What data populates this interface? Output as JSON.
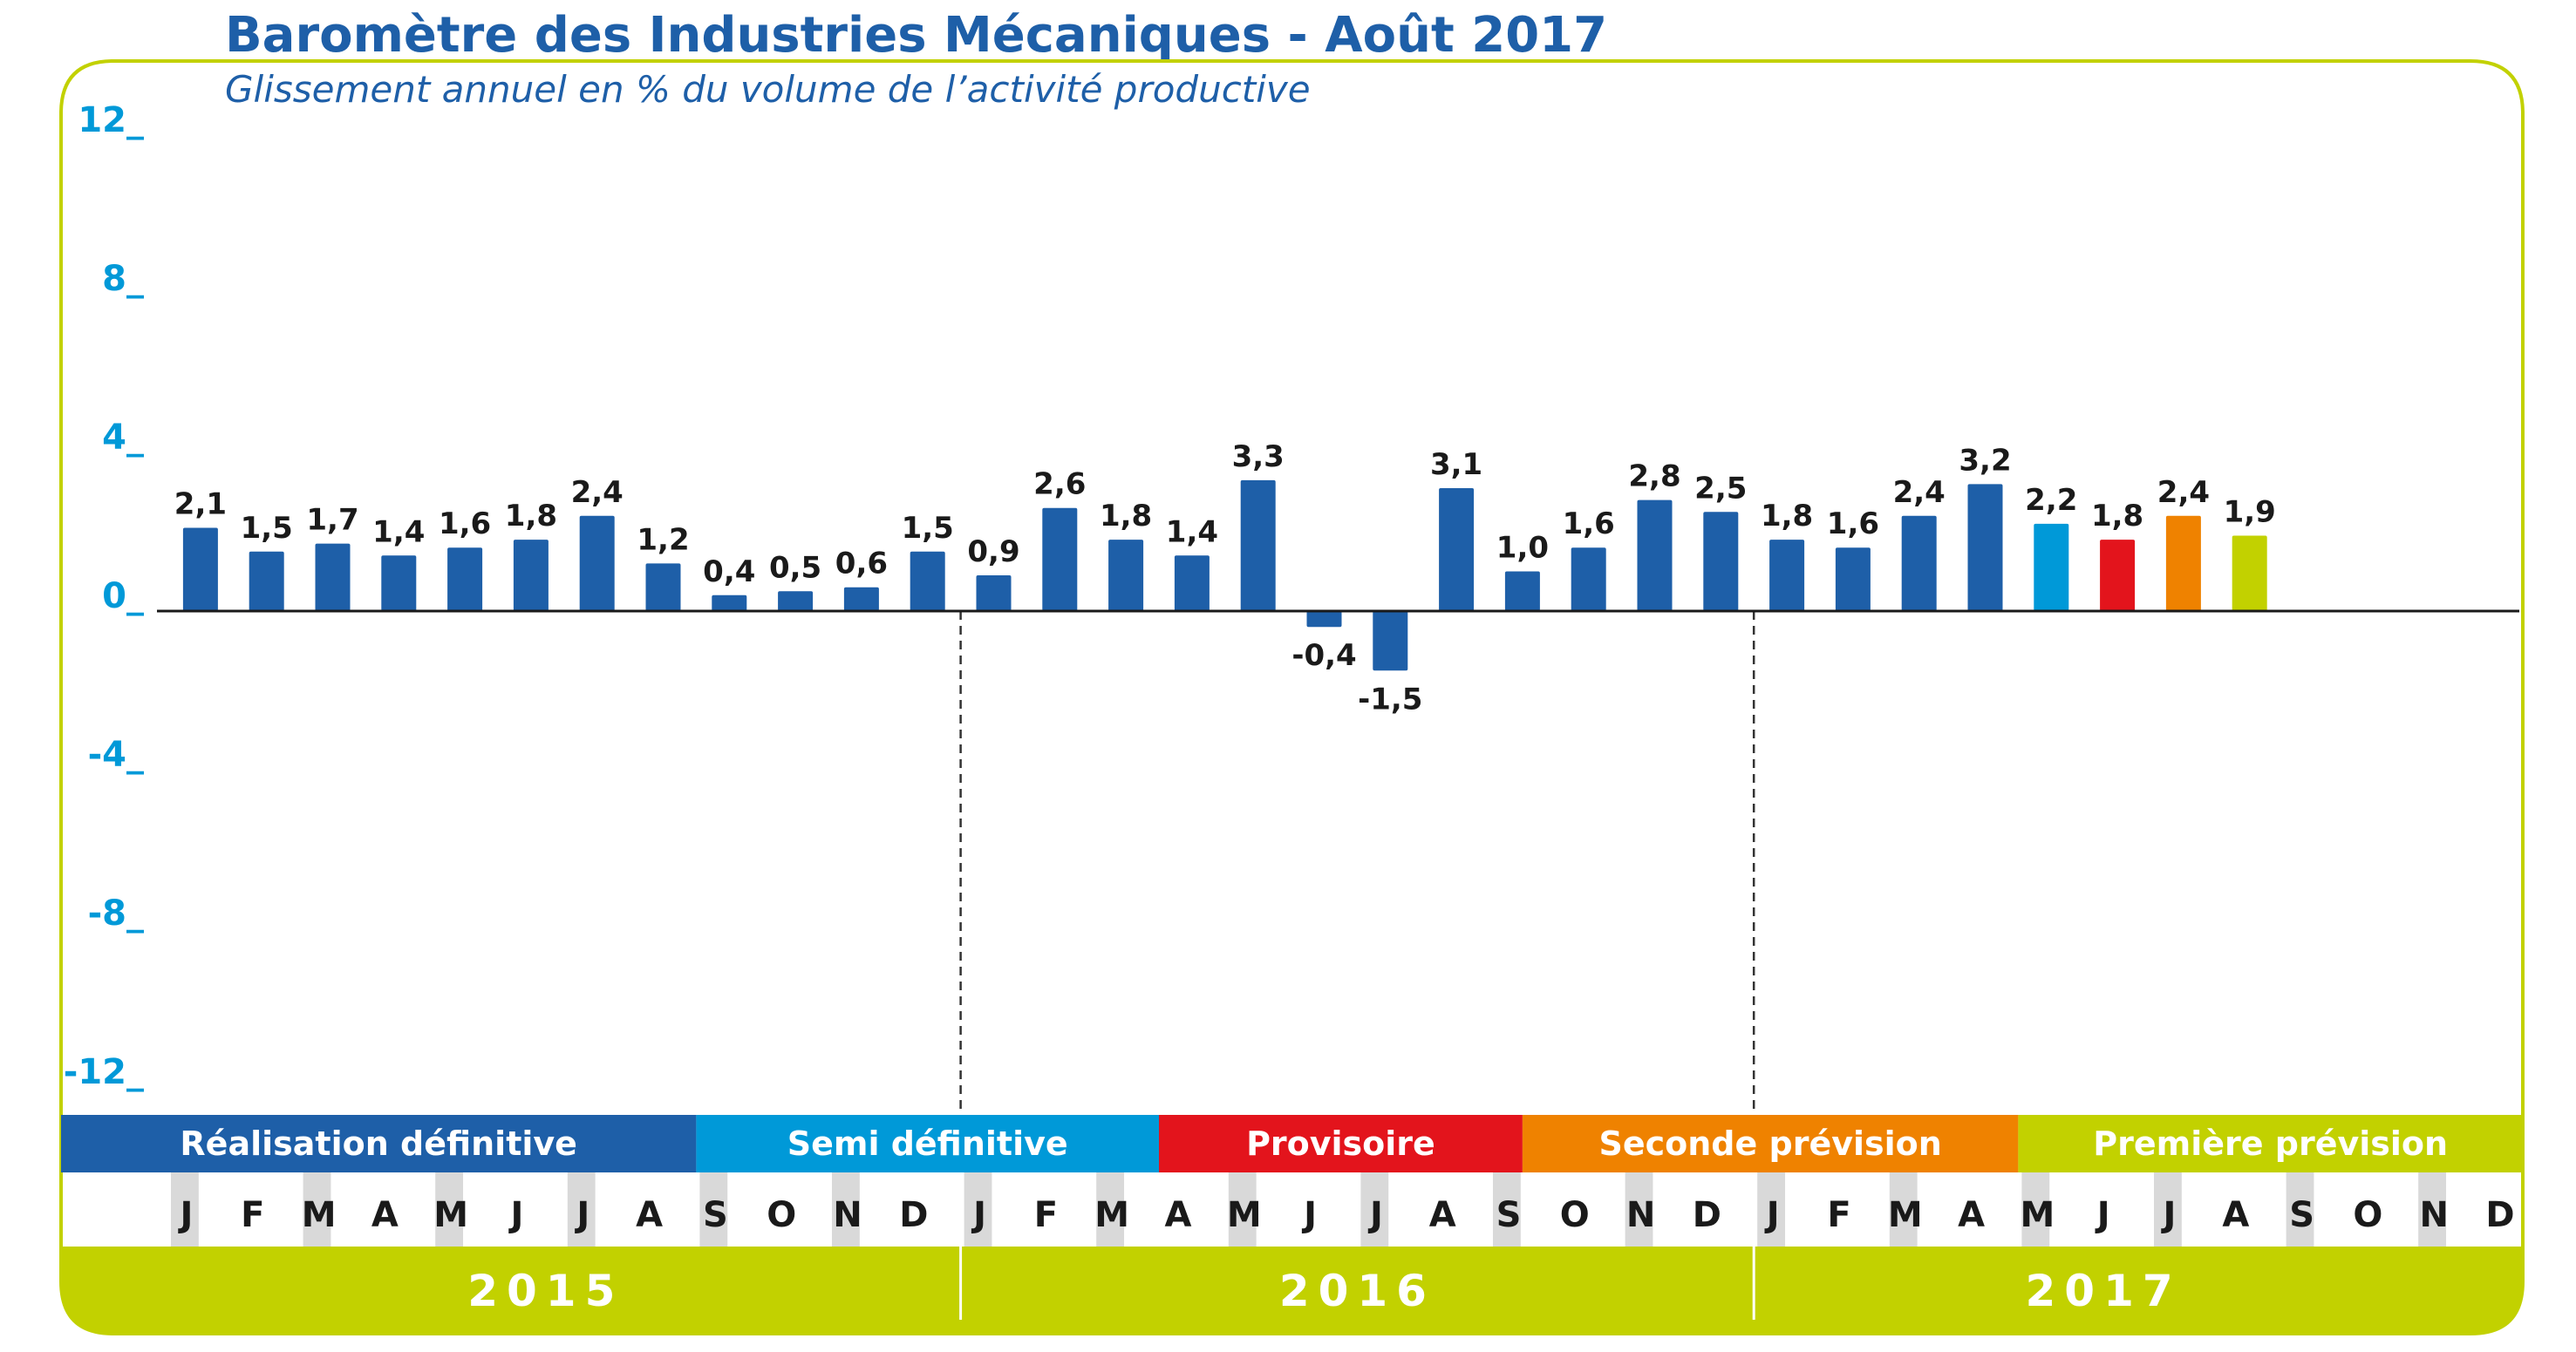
{
  "chart_data": {
    "type": "bar",
    "title": "Baromètre des Industries Mécaniques - Août 2017",
    "subtitle": "Glissement annuel en % du volume de l’activité productive",
    "ylim": [
      -12,
      12
    ],
    "yticks": [
      "12_",
      "8_",
      "4_",
      "0_",
      "-4_",
      "-8_",
      "-12_"
    ],
    "ytick_values": [
      12,
      8,
      4,
      0,
      -4,
      -8,
      -12
    ],
    "grid": false,
    "month_labels": [
      "J",
      "F",
      "M",
      "A",
      "M",
      "J",
      "J",
      "A",
      "S",
      "O",
      "N",
      "D",
      "J",
      "F",
      "M",
      "A",
      "M",
      "J",
      "J",
      "A",
      "S",
      "O",
      "N",
      "D",
      "J",
      "F",
      "M",
      "A",
      "M",
      "J",
      "J",
      "A",
      "S",
      "O",
      "N",
      "D"
    ],
    "years": [
      "2015",
      "2016",
      "2017"
    ],
    "values": [
      2.1,
      1.5,
      1.7,
      1.4,
      1.6,
      1.8,
      2.4,
      1.2,
      0.4,
      0.5,
      0.6,
      1.5,
      0.9,
      2.6,
      1.8,
      1.4,
      3.3,
      -0.4,
      -1.5,
      3.1,
      1.0,
      1.6,
      2.8,
      2.5,
      1.8,
      1.6,
      2.4,
      3.2,
      2.2,
      1.8,
      2.4,
      1.9
    ],
    "value_labels": [
      "2,1",
      "1,5",
      "1,7",
      "1,4",
      "1,6",
      "1,8",
      "2,4",
      "1,2",
      "0,4",
      "0,5",
      "0,6",
      "1,5",
      "0,9",
      "2,6",
      "1,8",
      "1,4",
      "3,3",
      "-0,4",
      "-1,5",
      "3,1",
      "1,0",
      "1,6",
      "2,8",
      "2,5",
      "1,8",
      "1,6",
      "2,4",
      "3,2",
      "2,2",
      "1,8",
      "2,4",
      "1,9"
    ],
    "bar_colors": [
      "#1e5fa8",
      "#1e5fa8",
      "#1e5fa8",
      "#1e5fa8",
      "#1e5fa8",
      "#1e5fa8",
      "#1e5fa8",
      "#1e5fa8",
      "#1e5fa8",
      "#1e5fa8",
      "#1e5fa8",
      "#1e5fa8",
      "#1e5fa8",
      "#1e5fa8",
      "#1e5fa8",
      "#1e5fa8",
      "#1e5fa8",
      "#1e5fa8",
      "#1e5fa8",
      "#1e5fa8",
      "#1e5fa8",
      "#1e5fa8",
      "#1e5fa8",
      "#1e5fa8",
      "#1e5fa8",
      "#1e5fa8",
      "#1e5fa8",
      "#1e5fa8",
      "#0099d8",
      "#e3141c",
      "#ef8200",
      "#c2d100"
    ],
    "phases": [
      {
        "label": "Réalisation définitive",
        "color": "#1e5fa8",
        "start_month": 0,
        "end_month": 8
      },
      {
        "label": "Semi définitive",
        "color": "#0099d8",
        "start_month": 8,
        "end_month": 15
      },
      {
        "label": "Provisoire",
        "color": "#e3141c",
        "start_month": 15,
        "end_month": 20.5
      },
      {
        "label": "Seconde prévision",
        "color": "#ef8200",
        "start_month": 20.5,
        "end_month": 28
      },
      {
        "label": "Première prévision",
        "color": "#c2d100",
        "start_month": 28,
        "end_month": 36
      }
    ]
  },
  "colors": {
    "frame": "#c2d100",
    "axis_text": "#0099d8",
    "title": "#1e5fa8",
    "month_shade": "#d9d9d9",
    "year_band": "#c2d100"
  }
}
